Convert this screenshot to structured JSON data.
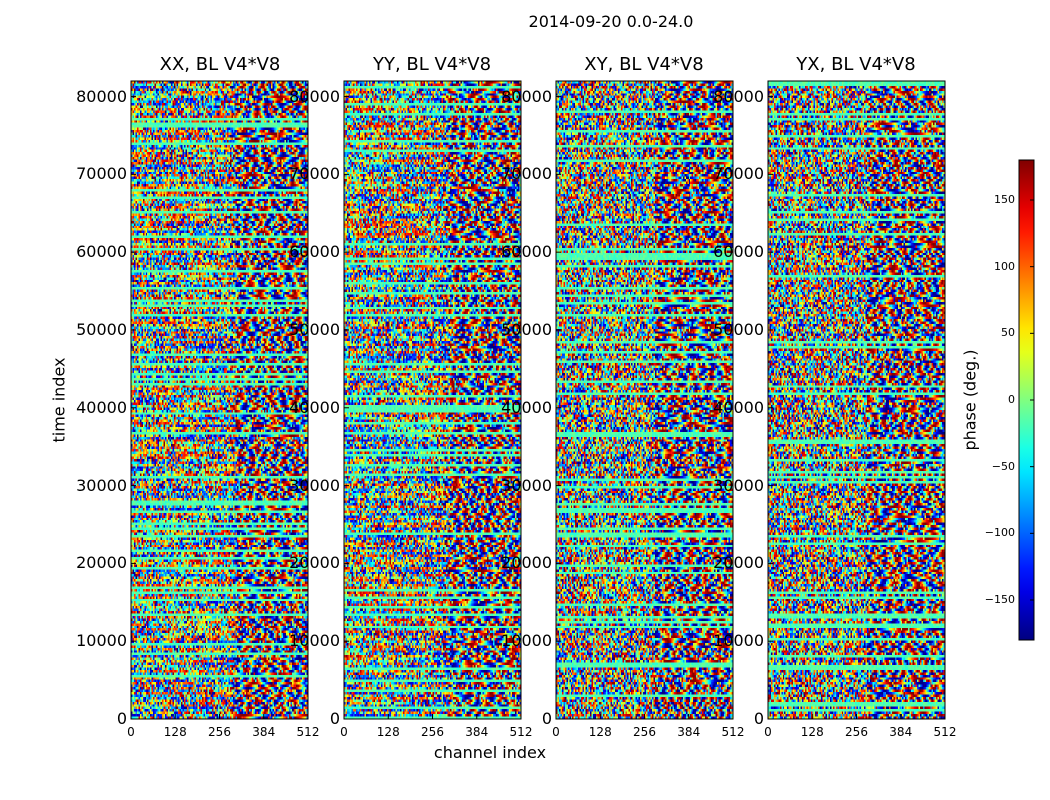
{
  "chart_data": {
    "type": "heatmap",
    "title": "2014-09-20 0.0-24.0",
    "xlabel": "channel index",
    "ylabel": "time index",
    "colorbar_label": "phase (deg.)",
    "colormap": "jet",
    "value_range": [
      -180,
      180
    ],
    "x_range": [
      0,
      512
    ],
    "y_range": [
      0,
      82000
    ],
    "x_ticks": [
      0,
      128,
      256,
      384,
      512
    ],
    "x_tick_labels": [
      "0",
      "128",
      "256",
      "384",
      "512"
    ],
    "y_ticks": [
      0,
      10000,
      20000,
      30000,
      40000,
      50000,
      60000,
      70000,
      80000
    ],
    "y_tick_labels": [
      "0",
      "10000",
      "20000",
      "30000",
      "40000",
      "50000",
      "60000",
      "70000",
      "80000"
    ],
    "colorbar_ticks": [
      -150,
      -100,
      -50,
      0,
      50,
      100,
      150
    ],
    "colorbar_tick_labels": [
      "−150",
      "−100",
      "−50",
      "0",
      "50",
      "100",
      "150"
    ],
    "panels": [
      {
        "title": "XX, BL V4*V8",
        "pol": "XX"
      },
      {
        "title": "YY, BL V4*V8",
        "pol": "YY"
      },
      {
        "title": "XY, BL V4*V8",
        "pol": "XY"
      },
      {
        "title": "YX, BL V4*V8",
        "pol": "YX"
      }
    ]
  }
}
